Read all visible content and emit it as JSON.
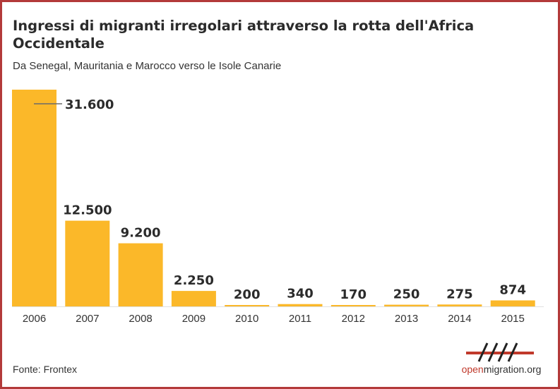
{
  "title": "Ingressi di migranti irregolari attraverso la rotta dell'Africa Occidentale",
  "subtitle": "Da Senegal, Mauritania e Marocco verso le Isole Canarie",
  "source": "Fonte: Frontex",
  "logo": {
    "prefix": "open",
    "main": "migration.org"
  },
  "colors": {
    "bar": "#fbb829",
    "border": "#b33a3a",
    "logo_accent": "#c0392b",
    "text": "#2b2b2b"
  },
  "chart_data": {
    "type": "bar",
    "title": "Ingressi di migranti irregolari attraverso la rotta dell'Africa Occidentale",
    "subtitle": "Da Senegal, Mauritania e Marocco verso le Isole Canarie",
    "categories": [
      "2006",
      "2007",
      "2008",
      "2009",
      "2010",
      "2011",
      "2012",
      "2013",
      "2014",
      "2015"
    ],
    "values": [
      31600,
      12500,
      9200,
      2250,
      200,
      340,
      170,
      250,
      275,
      874
    ],
    "value_labels": [
      "31.600",
      "12.500",
      "9.200",
      "2.250",
      "200",
      "340",
      "170",
      "250",
      "275",
      "874"
    ],
    "xlabel": "",
    "ylabel": "",
    "ylim": [
      0,
      31600
    ],
    "grid": false,
    "legend": "none"
  }
}
